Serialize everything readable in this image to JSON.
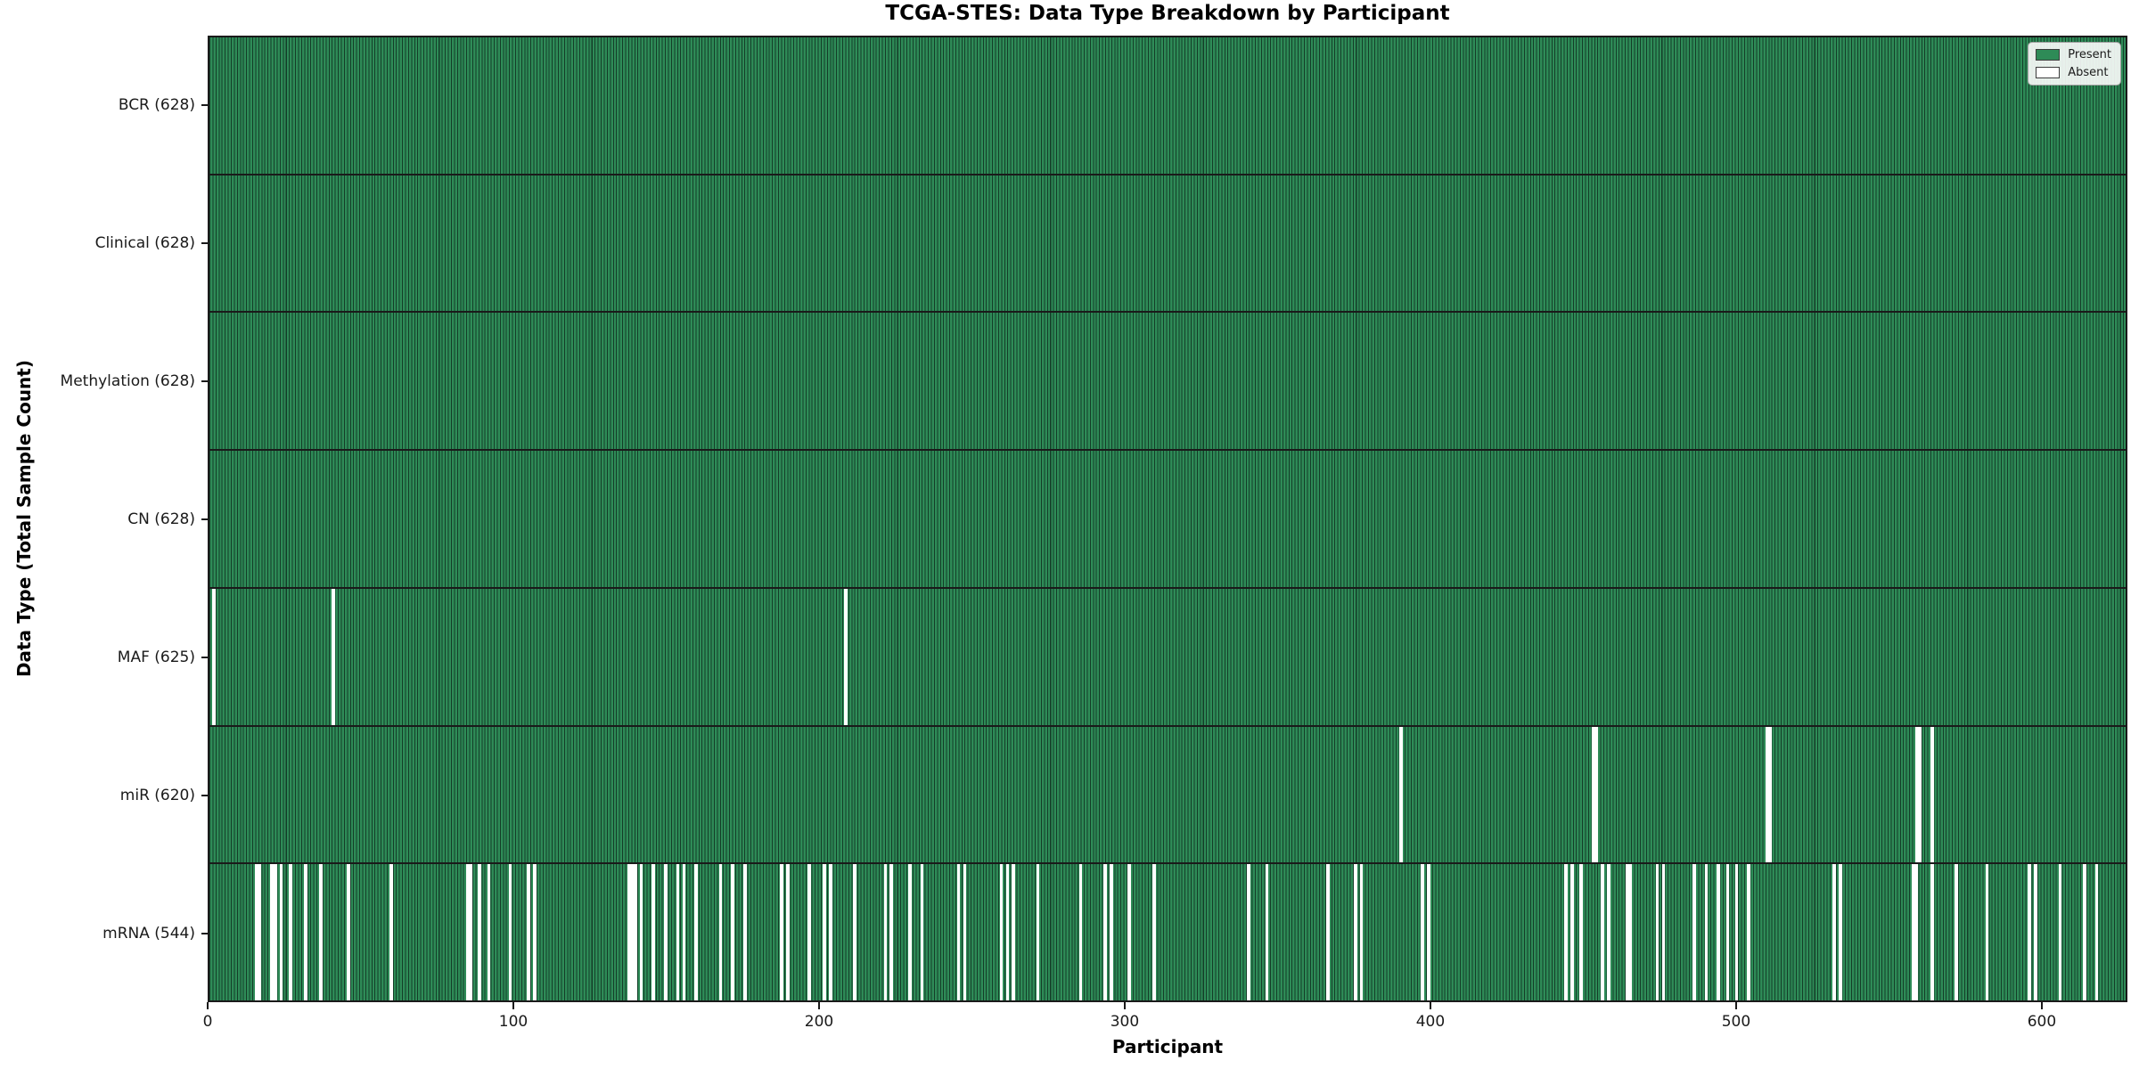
{
  "chart_data": {
    "type": "heatmap",
    "title": "TCGA-STES: Data Type Breakdown by Participant",
    "xlabel": "Participant",
    "ylabel": "Data Type (Total Sample Count)",
    "x_ticks": [
      0,
      100,
      200,
      300,
      400,
      500,
      600
    ],
    "x_range": [
      0,
      628
    ],
    "n_participants": 628,
    "grid": false,
    "colors": {
      "present": "#2e8b57",
      "bar_edge": "#143d28",
      "absent": "#ffffff",
      "axis": "#1a1a1a"
    },
    "legend": {
      "position": "upper right",
      "entries": [
        {
          "label": "Present",
          "color": "#2e8b57"
        },
        {
          "label": "Absent",
          "color": "#ffffff"
        }
      ]
    },
    "rows": [
      {
        "data_type": "BCR",
        "label": "BCR (628)",
        "present_count": 628,
        "total": 628,
        "absent_participants": []
      },
      {
        "data_type": "Clinical",
        "label": "Clinical (628)",
        "present_count": 628,
        "total": 628,
        "absent_participants": []
      },
      {
        "data_type": "Methylation",
        "label": "Methylation (628)",
        "present_count": 628,
        "total": 628,
        "absent_participants": []
      },
      {
        "data_type": "CN",
        "label": "CN (628)",
        "present_count": 628,
        "total": 628,
        "absent_participants": []
      },
      {
        "data_type": "MAF",
        "label": "MAF (625)",
        "present_count": 625,
        "total": 628,
        "absent_participants": [
          1,
          40,
          208
        ]
      },
      {
        "data_type": "miR",
        "label": "miR (620)",
        "present_count": 620,
        "total": 628,
        "absent_participants": [
          390,
          453,
          454,
          510,
          511,
          559,
          560,
          564
        ]
      },
      {
        "data_type": "mRNA",
        "label": "mRNA (544)",
        "present_count": 544,
        "total": 628,
        "absent_participants": [
          15,
          16,
          20,
          21,
          23,
          26,
          31,
          36,
          45,
          59,
          84,
          85,
          88,
          91,
          98,
          104,
          106,
          137,
          138,
          139,
          141,
          145,
          149,
          153,
          155,
          159,
          167,
          171,
          175,
          187,
          189,
          196,
          201,
          203,
          211,
          221,
          223,
          229,
          233,
          245,
          247,
          259,
          261,
          263,
          271,
          285,
          293,
          295,
          301,
          309,
          340,
          346,
          366,
          375,
          377,
          397,
          399,
          444,
          446,
          449,
          456,
          458,
          464,
          465,
          474,
          476,
          486,
          490,
          494,
          497,
          500,
          504,
          532,
          534,
          558,
          559,
          564,
          572,
          582,
          596,
          598,
          606,
          614,
          618
        ]
      }
    ]
  }
}
